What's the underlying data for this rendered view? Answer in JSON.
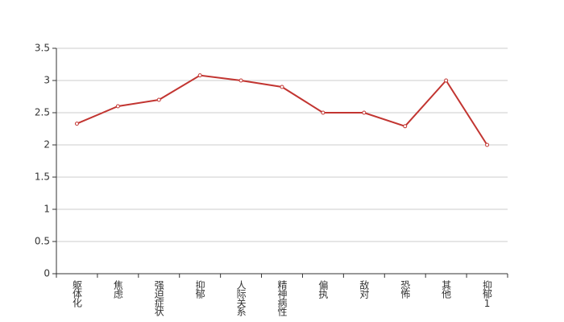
{
  "chart_data": {
    "type": "line",
    "categories": [
      "躯体化",
      "焦虑",
      "强迫症状",
      "抑郁",
      "人际关系",
      "精神病性",
      "偏执",
      "敌对",
      "恐怖",
      "其他",
      "抑郁1"
    ],
    "series": [
      {
        "color": "#c23531",
        "values": [
          2.33,
          2.6,
          2.7,
          3.08,
          3.0,
          2.9,
          2.5,
          2.5,
          2.29,
          3.0,
          2.0
        ]
      }
    ],
    "ylim": [
      0,
      3.5
    ],
    "yticks": [
      0,
      0.5,
      1,
      1.5,
      2,
      2.5,
      3,
      3.5
    ],
    "grid": true
  }
}
